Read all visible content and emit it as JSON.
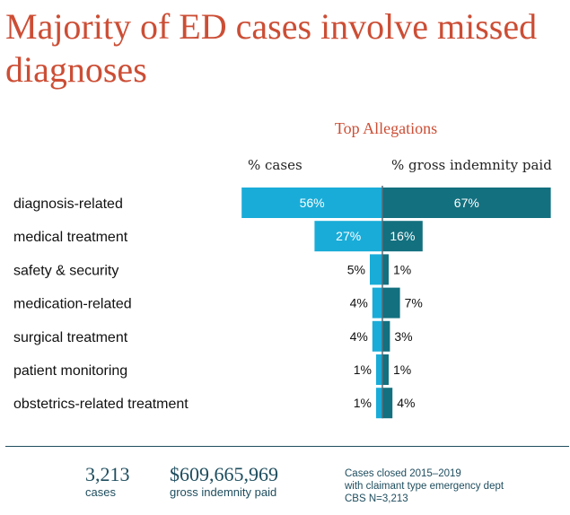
{
  "title": "Majority of ED cases involve missed diagnoses",
  "colors": {
    "title": "#cc4e35",
    "cases_bar": "#19acd8",
    "indemnity_bar": "#13707f",
    "footer": "#1e4d5e"
  },
  "chart_data": {
    "type": "bar",
    "orientation": "diverging-horizontal",
    "title": "Top Allegations",
    "categories": [
      "diagnosis-related",
      "medical treatment",
      "safety & security",
      "medication-related",
      "surgical treatment",
      "patient monitoring",
      "obstetrics-related treatment"
    ],
    "series": [
      {
        "name": "% cases",
        "values": [
          56,
          27,
          5,
          4,
          4,
          1,
          1
        ]
      },
      {
        "name": "% gross indemnity paid",
        "values": [
          67,
          16,
          1,
          7,
          3,
          1,
          4
        ]
      }
    ],
    "unit": "%"
  },
  "footer": {
    "cases_value": "3,213",
    "cases_label": "cases",
    "indemnity_value": "$609,665,969",
    "indemnity_label": "gross indemnity paid",
    "note_line1": "Cases closed 2015–2019",
    "note_line2": "with claimant type emergency dept",
    "note_line3": "CBS N=3,213"
  }
}
